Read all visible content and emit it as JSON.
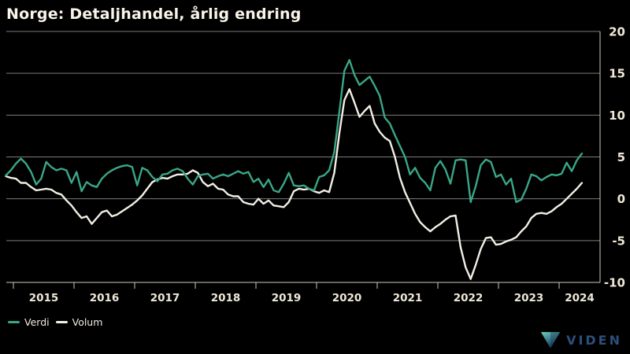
{
  "title": "Norge: Detaljhandel, årlig endring",
  "legend": {
    "items": [
      {
        "label": "Verdi",
        "color": "#3aa688"
      },
      {
        "label": "Volum",
        "color": "#f2efe4"
      }
    ]
  },
  "logo": {
    "text": "VIDEN"
  },
  "colors": {
    "background": "#000000",
    "grid": "#7d7d7d",
    "axis": "#cfcabc",
    "tick_label": "#efe8d8",
    "title": "#f8f4ea",
    "verdi_line": "#3aa688",
    "volum_line": "#f2efe4",
    "logo_text": "#2c4f7c",
    "logo_triangle_top": "#6ecfc0",
    "logo_triangle_bottom": "#15365c"
  },
  "chart_data": {
    "type": "line",
    "title": "Norge: Detaljhandel, årlig endring",
    "x_frequency": "monthly",
    "x_start": {
      "year": 2014,
      "month": 11
    },
    "x_end": {
      "year": 2024,
      "month": 5
    },
    "x_tick_labels": [
      "2015",
      "2016",
      "2017",
      "2018",
      "2019",
      "2020",
      "2021",
      "2022",
      "2023",
      "2024"
    ],
    "y_ticks": [
      20,
      15,
      10,
      5,
      0,
      -5,
      -10
    ],
    "ylim": [
      -10,
      20
    ],
    "grid": true,
    "legend_position": "bottom-left",
    "series": [
      {
        "name": "Verdi",
        "color": "#3aa688",
        "values": [
          2.8,
          3.4,
          4.2,
          4.8,
          4.2,
          3.2,
          1.7,
          2.4,
          4.4,
          3.8,
          3.4,
          3.6,
          3.4,
          1.9,
          3.2,
          0.9,
          2.0,
          1.6,
          1.4,
          2.4,
          3.0,
          3.4,
          3.7,
          3.9,
          4.0,
          3.8,
          1.6,
          3.7,
          3.4,
          2.6,
          2.1,
          2.9,
          3.0,
          3.4,
          3.6,
          3.3,
          2.4,
          1.7,
          2.7,
          2.9,
          3.0,
          2.4,
          2.7,
          2.9,
          2.7,
          3.0,
          3.3,
          3.0,
          3.2,
          2.0,
          2.4,
          1.4,
          2.3,
          1.0,
          0.8,
          1.8,
          3.1,
          1.6,
          1.5,
          1.6,
          1.2,
          1.0,
          2.6,
          2.8,
          3.4,
          5.6,
          10.4,
          15.3,
          16.6,
          14.8,
          13.6,
          14.1,
          14.6,
          13.5,
          12.3,
          9.7,
          9.0,
          7.6,
          6.3,
          5.0,
          2.9,
          3.7,
          2.5,
          1.9,
          1.0,
          3.7,
          4.5,
          3.5,
          1.8,
          4.6,
          4.7,
          4.6,
          -0.4,
          1.5,
          4.0,
          4.7,
          4.4,
          2.6,
          2.9,
          1.7,
          2.4,
          -0.4,
          -0.1,
          1.2,
          2.9,
          2.7,
          2.2,
          2.6,
          2.9,
          2.8,
          3.0,
          4.3,
          3.3,
          4.6,
          5.4
        ]
      },
      {
        "name": "Volum",
        "color": "#f2efe4",
        "values": [
          2.7,
          2.5,
          2.4,
          1.9,
          1.9,
          1.4,
          1.0,
          1.1,
          1.2,
          1.1,
          0.7,
          0.5,
          -0.2,
          -0.8,
          -1.6,
          -2.3,
          -2.1,
          -3.0,
          -2.3,
          -1.6,
          -1.4,
          -2.1,
          -1.9,
          -1.5,
          -1.1,
          -0.7,
          -0.2,
          0.4,
          1.2,
          2.0,
          2.3,
          2.5,
          2.4,
          2.7,
          2.9,
          2.9,
          3.0,
          3.4,
          3.1,
          2.0,
          1.5,
          1.8,
          1.2,
          1.1,
          0.5,
          0.3,
          0.3,
          -0.4,
          -0.6,
          -0.7,
          0.0,
          -0.6,
          -0.2,
          -0.8,
          -0.9,
          -1.0,
          -0.4,
          0.9,
          1.2,
          1.1,
          1.2,
          0.9,
          0.7,
          1.0,
          0.8,
          3.1,
          7.8,
          11.8,
          13.1,
          11.5,
          9.8,
          10.5,
          11.1,
          9.0,
          8.0,
          7.3,
          6.9,
          5.0,
          2.5,
          0.8,
          -0.5,
          -1.8,
          -2.8,
          -3.4,
          -3.9,
          -3.4,
          -3.0,
          -2.5,
          -2.1,
          -2.0,
          -5.8,
          -8.2,
          -9.6,
          -7.9,
          -6.0,
          -4.7,
          -4.6,
          -5.5,
          -5.4,
          -5.1,
          -4.9,
          -4.6,
          -3.9,
          -3.3,
          -2.3,
          -1.8,
          -1.7,
          -1.8,
          -1.5,
          -1.0,
          -0.6,
          0.0,
          0.6,
          1.2,
          1.9
        ]
      }
    ]
  }
}
